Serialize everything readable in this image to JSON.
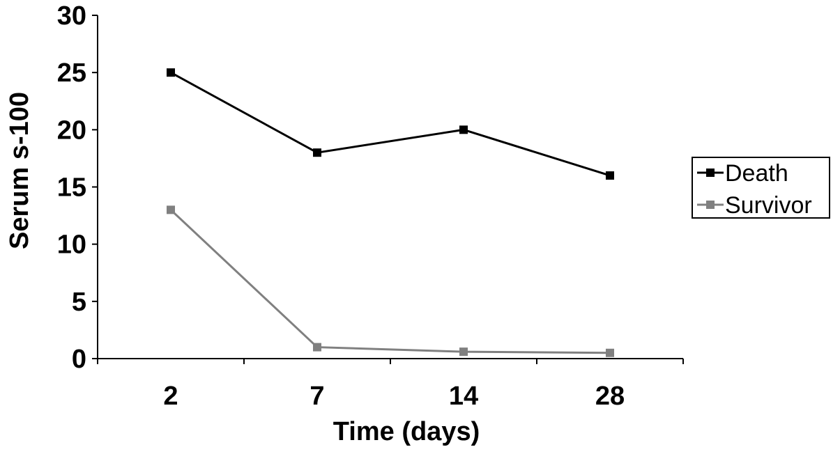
{
  "chart_data": {
    "type": "line",
    "xlabel": "Time (days)",
    "ylabel": "Serum s-100",
    "categories": [
      "2",
      "7",
      "14",
      "28"
    ],
    "yticks": [
      "0",
      "5",
      "10",
      "15",
      "20",
      "25",
      "30"
    ],
    "ylim": [
      0,
      30
    ],
    "grid": false,
    "legend_position": "right",
    "series": [
      {
        "name": "Death",
        "values": [
          25,
          18,
          20,
          16
        ],
        "color": "#000000",
        "marker": "square"
      },
      {
        "name": "Survivor",
        "values": [
          13,
          1,
          0.6,
          0.5
        ],
        "color": "#808080",
        "marker": "square"
      }
    ]
  }
}
